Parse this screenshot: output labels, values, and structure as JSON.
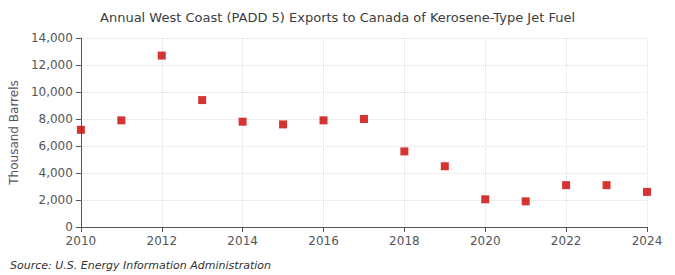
{
  "chart_data": {
    "type": "scatter",
    "title": "Annual West Coast (PADD 5) Exports to Canada of Kerosene-Type Jet Fuel",
    "ylabel": "Thousand Barrels",
    "annotations": [
      "Source: U.S. Energy Information Administration"
    ],
    "x": [
      2010,
      2011,
      2012,
      2013,
      2014,
      2015,
      2016,
      2017,
      2018,
      2019,
      2020,
      2021,
      2022,
      2023,
      2024
    ],
    "values": [
      7200,
      7900,
      12700,
      9400,
      7800,
      7600,
      7900,
      8000,
      5600,
      4500,
      2050,
      1900,
      3100,
      3100,
      2600
    ],
    "color": "#cc0000",
    "marker": "square",
    "xlim": [
      2010,
      2024
    ],
    "xticks": [
      2010,
      2012,
      2014,
      2016,
      2018,
      2020,
      2022,
      2024
    ],
    "ylim": [
      0,
      14000
    ],
    "yticks": [
      0,
      {
        "value": 2000,
        "label": "2,000"
      },
      {
        "value": 4000,
        "label": "4,000"
      },
      {
        "value": 6000,
        "label": "6,000"
      },
      {
        "value": 8000,
        "label": "8,000"
      },
      {
        "value": 10000,
        "label": "10,000"
      },
      {
        "value": 12000,
        "label": "12,000"
      },
      {
        "value": 14000,
        "label": "14,000"
      }
    ],
    "grid": true
  }
}
